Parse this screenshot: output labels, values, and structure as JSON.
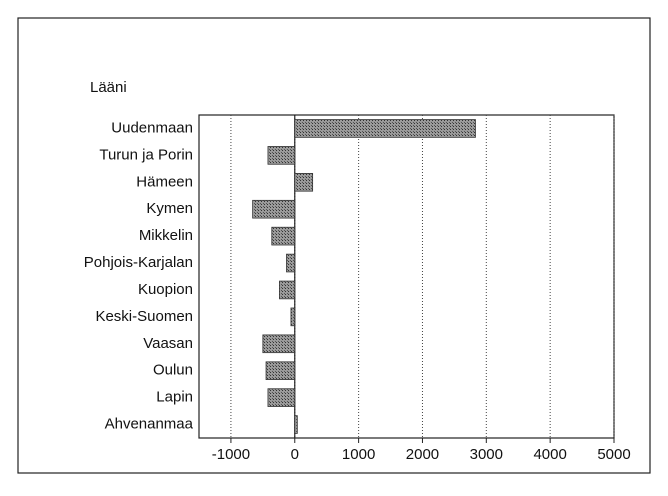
{
  "chart_data": {
    "type": "barh",
    "ylabel": "Lääni",
    "categories": [
      "Uudenmaan",
      "Turun ja Porin",
      "Hämeen",
      "Kymen",
      "Mikkelin",
      "Pohjois-Karjalan",
      "Kuopion",
      "Keski-Suomen",
      "Vaasan",
      "Oulun",
      "Lapin",
      "Ahvenanmaa"
    ],
    "values": [
      2830,
      -420,
      280,
      -660,
      -360,
      -130,
      -240,
      -60,
      -500,
      -450,
      -420,
      40
    ],
    "color": "#777777",
    "xlim": [
      -1500,
      5000
    ],
    "xticks": [
      -1000,
      0,
      1000,
      2000,
      3000,
      4000,
      5000
    ],
    "grid": true
  }
}
